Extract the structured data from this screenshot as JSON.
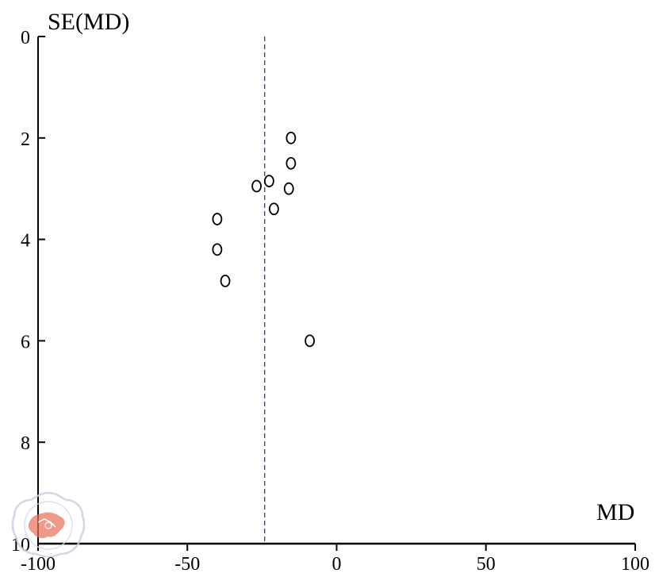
{
  "chart_data": {
    "type": "scatter",
    "title": "",
    "xlabel": "MD",
    "ylabel": "SE(MD)",
    "xlim": [
      -100,
      100
    ],
    "ylim": [
      0,
      10
    ],
    "y_inverted": true,
    "x_ticks": [
      -100,
      -50,
      0,
      50,
      100
    ],
    "x_tick_labels": [
      "-100",
      "-50",
      "0",
      "50",
      "100"
    ],
    "y_ticks": [
      0,
      2,
      4,
      6,
      8,
      10
    ],
    "y_tick_labels": [
      "0",
      "2",
      "4",
      "6",
      "8",
      "10"
    ],
    "reference_line_x": -24.1,
    "grid": false,
    "legend": "none",
    "marker": "open-circle",
    "colors": {
      "points": "#000000",
      "reference_line": "#2b2b6b",
      "axes": "#000000",
      "watermark": "#e8735a"
    },
    "points": [
      {
        "x": -15.3,
        "y": 2.0
      },
      {
        "x": -15.3,
        "y": 2.5
      },
      {
        "x": -22.6,
        "y": 2.85
      },
      {
        "x": -26.8,
        "y": 2.95
      },
      {
        "x": -16.0,
        "y": 3.0
      },
      {
        "x": -21.0,
        "y": 3.4
      },
      {
        "x": -40.0,
        "y": 3.6
      },
      {
        "x": -40.0,
        "y": 4.2
      },
      {
        "x": -37.3,
        "y": 4.82
      },
      {
        "x": -9.0,
        "y": 6.0
      }
    ]
  },
  "watermark": {
    "icon": "seal-emblem-icon"
  }
}
